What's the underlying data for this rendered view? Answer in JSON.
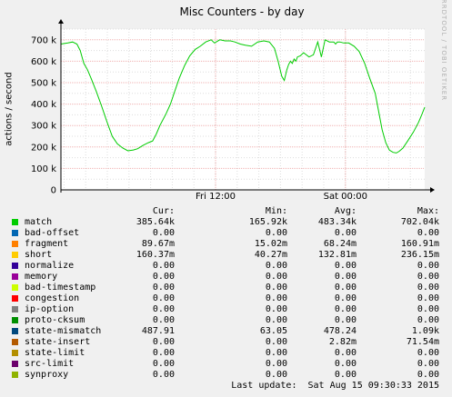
{
  "chart_data": {
    "type": "line",
    "title": "Misc Counters - by day",
    "ylabel": "actions / second",
    "watermark": "RRDTOOL / TOBI OETIKER",
    "ylim": [
      0,
      750000
    ],
    "y_ticks": [
      {
        "value": 0,
        "label": "0"
      },
      {
        "value": 100000,
        "label": "100 k"
      },
      {
        "value": 200000,
        "label": "200 k"
      },
      {
        "value": 300000,
        "label": "300 k"
      },
      {
        "value": 400000,
        "label": "400 k"
      },
      {
        "value": 500000,
        "label": "500 k"
      },
      {
        "value": 600000,
        "label": "600 k"
      },
      {
        "value": 700000,
        "label": "700 k"
      }
    ],
    "x_range": [
      0,
      100
    ],
    "x_ticks": [
      {
        "value": 42.5,
        "label": "Fri 12:00"
      },
      {
        "value": 78.2,
        "label": "Sat 00:00"
      }
    ],
    "colors": {
      "line": "#00cc00",
      "grid": "#ff0000",
      "canvas": "#ffffff",
      "background": "#f0f0f0"
    },
    "series": [
      {
        "name": "match",
        "x": [
          0,
          1.9,
          3.2,
          4.4,
          5.3,
          5.8,
          6.3,
          7.3,
          8.3,
          9.7,
          11.2,
          12.6,
          14.1,
          15.5,
          17.0,
          18.4,
          19.9,
          21.1,
          22.6,
          24.0,
          25.2,
          26.2,
          27.2,
          28.9,
          30.1,
          31.3,
          32.5,
          34.0,
          35.4,
          36.9,
          38.3,
          39.8,
          41.3,
          42.2,
          43.7,
          45.1,
          46.6,
          47.8,
          49.3,
          50.7,
          52.4,
          54.1,
          55.8,
          57.3,
          58.7,
          59.7,
          60.7,
          61.4,
          62.1,
          62.6,
          63.1,
          63.6,
          64.1,
          64.6,
          65.0,
          65.8,
          66.7,
          68.2,
          69.4,
          70.6,
          71.6,
          72.6,
          73.8,
          75.0,
          75.5,
          76.0,
          76.7,
          77.7,
          79.1,
          80.6,
          82.0,
          83.5,
          84.9,
          86.4,
          87.4,
          88.3,
          89.3,
          90.3,
          91.3,
          92.2,
          93.0,
          94.0,
          95.4,
          96.9,
          98.3,
          99.3,
          100
        ],
        "y": [
          680000,
          685000,
          690000,
          680000,
          650000,
          620000,
          590000,
          560000,
          520000,
          460000,
          390000,
          320000,
          250000,
          215000,
          195000,
          182000,
          186000,
          192000,
          208000,
          220000,
          228000,
          260000,
          300000,
          355000,
          400000,
          460000,
          520000,
          580000,
          625000,
          655000,
          670000,
          690000,
          700000,
          685000,
          700000,
          695000,
          695000,
          690000,
          680000,
          675000,
          670000,
          690000,
          695000,
          690000,
          660000,
          600000,
          530000,
          510000,
          560000,
          585000,
          600000,
          590000,
          610000,
          600000,
          620000,
          625000,
          640000,
          620000,
          630000,
          690000,
          620000,
          700000,
          690000,
          690000,
          680000,
          690000,
          690000,
          685000,
          685000,
          670000,
          645000,
          590000,
          520000,
          450000,
          360000,
          280000,
          220000,
          185000,
          175000,
          172000,
          180000,
          195000,
          230000,
          270000,
          315000,
          355000,
          385640
        ]
      }
    ]
  },
  "legend": {
    "headers": {
      "cur": "Cur:",
      "min": "Min:",
      "avg": "Avg:",
      "max": "Max:"
    },
    "rows": [
      {
        "name": "match",
        "color": "#00cc00",
        "cur": "385.64k",
        "min": "165.92k",
        "avg": "483.34k",
        "max": "702.04k"
      },
      {
        "name": "bad-offset",
        "color": "#0066b3",
        "cur": "0.00",
        "min": "0.00",
        "avg": "0.00",
        "max": "0.00"
      },
      {
        "name": "fragment",
        "color": "#ff8000",
        "cur": "89.67m",
        "min": "15.02m",
        "avg": "68.24m",
        "max": "160.91m"
      },
      {
        "name": "short",
        "color": "#ffcc00",
        "cur": "160.37m",
        "min": "40.27m",
        "avg": "132.81m",
        "max": "236.15m"
      },
      {
        "name": "normalize",
        "color": "#330099",
        "cur": "0.00",
        "min": "0.00",
        "avg": "0.00",
        "max": "0.00"
      },
      {
        "name": "memory",
        "color": "#990099",
        "cur": "0.00",
        "min": "0.00",
        "avg": "0.00",
        "max": "0.00"
      },
      {
        "name": "bad-timestamp",
        "color": "#ccff00",
        "cur": "0.00",
        "min": "0.00",
        "avg": "0.00",
        "max": "0.00"
      },
      {
        "name": "congestion",
        "color": "#ff0000",
        "cur": "0.00",
        "min": "0.00",
        "avg": "0.00",
        "max": "0.00"
      },
      {
        "name": "ip-option",
        "color": "#808080",
        "cur": "0.00",
        "min": "0.00",
        "avg": "0.00",
        "max": "0.00"
      },
      {
        "name": "proto-cksum",
        "color": "#008f00",
        "cur": "0.00",
        "min": "0.00",
        "avg": "0.00",
        "max": "0.00"
      },
      {
        "name": "state-mismatch",
        "color": "#00487d",
        "cur": "487.91",
        "min": "63.05",
        "avg": "478.24",
        "max": "1.09k"
      },
      {
        "name": "state-insert",
        "color": "#b35a00",
        "cur": "0.00",
        "min": "0.00",
        "avg": "2.82m",
        "max": "71.54m"
      },
      {
        "name": "state-limit",
        "color": "#b38f00",
        "cur": "0.00",
        "min": "0.00",
        "avg": "0.00",
        "max": "0.00"
      },
      {
        "name": "src-limit",
        "color": "#6b006b",
        "cur": "0.00",
        "min": "0.00",
        "avg": "0.00",
        "max": "0.00"
      },
      {
        "name": "synproxy",
        "color": "#8fb300",
        "cur": "0.00",
        "min": "0.00",
        "avg": "0.00",
        "max": "0.00"
      }
    ]
  },
  "footer": "Last update:  Sat Aug 15 09:30:33 2015"
}
